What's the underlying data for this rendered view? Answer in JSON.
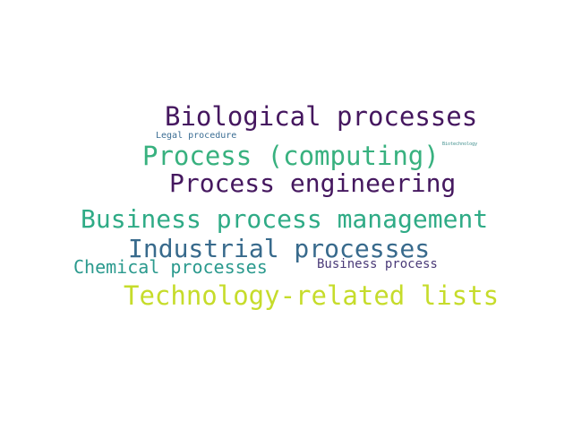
{
  "wordcloud": {
    "words": {
      "biological_processes": {
        "text": "Biological processes",
        "color": "#45175f"
      },
      "legal_procedure": {
        "text": "Legal procedure",
        "color": "#3c6e94"
      },
      "biotechnology": {
        "text": "Biotechnology",
        "color": "#3a8c8a"
      },
      "process_computing": {
        "text": "Process (computing)",
        "color": "#38b17f"
      },
      "process_engineering": {
        "text": "Process engineering",
        "color": "#45185f"
      },
      "business_process_management": {
        "text": "Business process management",
        "color": "#2fab86"
      },
      "industrial_processes": {
        "text": "Industrial processes",
        "color": "#386a8c"
      },
      "chemical_processes": {
        "text": "Chemical processes",
        "color": "#2b9a8e"
      },
      "business_process": {
        "text": "Business process",
        "color": "#4a3a78"
      },
      "technology_related_lists": {
        "text": "Technology-related lists",
        "color": "#c6dc2b"
      }
    }
  }
}
